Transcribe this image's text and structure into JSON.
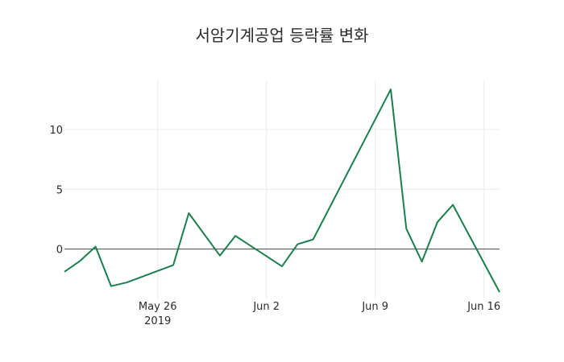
{
  "chart_data": {
    "type": "line",
    "title": "서암기계공업 등락률 변화",
    "xlabel": "",
    "ylabel": "",
    "x": [
      "2019-05-20",
      "2019-05-21",
      "2019-05-22",
      "2019-05-23",
      "2019-05-24",
      "2019-05-27",
      "2019-05-28",
      "2019-05-30",
      "2019-05-31",
      "2019-06-03",
      "2019-06-04",
      "2019-06-05",
      "2019-06-10",
      "2019-06-11",
      "2019-06-12",
      "2019-06-13",
      "2019-06-14",
      "2019-06-17"
    ],
    "series": [
      {
        "name": "등락률",
        "color": "#1a7f4b",
        "values": [
          -1.9,
          -1.0,
          0.2,
          -3.1,
          -2.8,
          -1.35,
          3.0,
          -0.55,
          1.1,
          -1.45,
          0.4,
          0.8,
          13.35,
          1.7,
          -1.05,
          2.25,
          3.7,
          -3.6
        ]
      }
    ],
    "x_ticks": [
      {
        "date": "2019-05-26",
        "label": "May 26",
        "sublabel": "2019"
      },
      {
        "date": "2019-06-02",
        "label": "Jun 2",
        "sublabel": ""
      },
      {
        "date": "2019-06-09",
        "label": "Jun 9",
        "sublabel": ""
      },
      {
        "date": "2019-06-16",
        "label": "Jun 16",
        "sublabel": ""
      }
    ],
    "y_ticks": [
      0,
      5,
      10
    ],
    "xlim": [
      "2019-05-20",
      "2019-06-17"
    ],
    "ylim": [
      -4.2,
      14.1
    ],
    "grid": true,
    "legend": "none"
  }
}
